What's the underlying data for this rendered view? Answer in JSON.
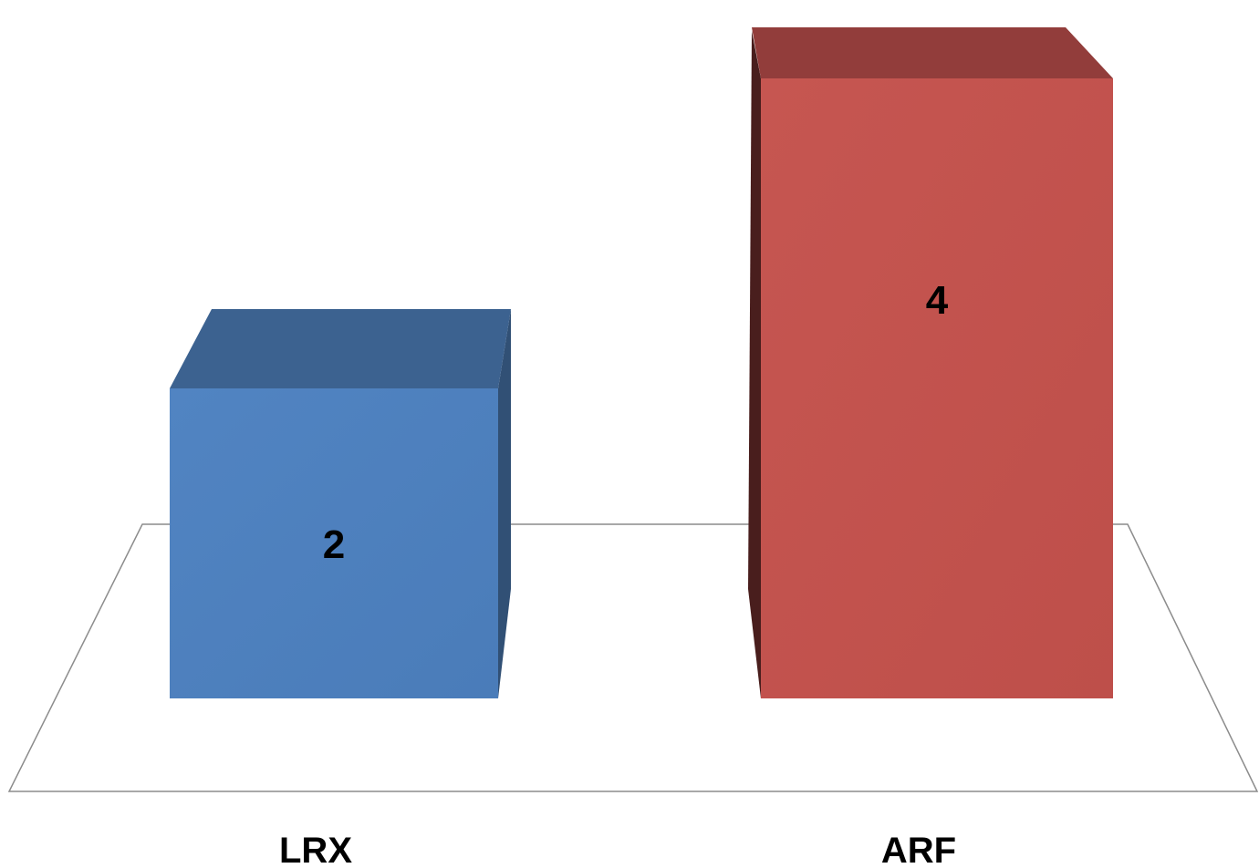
{
  "chart_data": {
    "type": "bar",
    "style": "3d-column",
    "categories": [
      "LRX",
      "ARF"
    ],
    "values": [
      2,
      4
    ],
    "data_labels": [
      "2",
      "4"
    ],
    "colors": [
      "#4f81bd",
      "#c0504d"
    ],
    "title": "",
    "xlabel": "",
    "ylabel": "",
    "ylim": [
      0,
      4
    ],
    "grid": false,
    "legend": "none"
  }
}
